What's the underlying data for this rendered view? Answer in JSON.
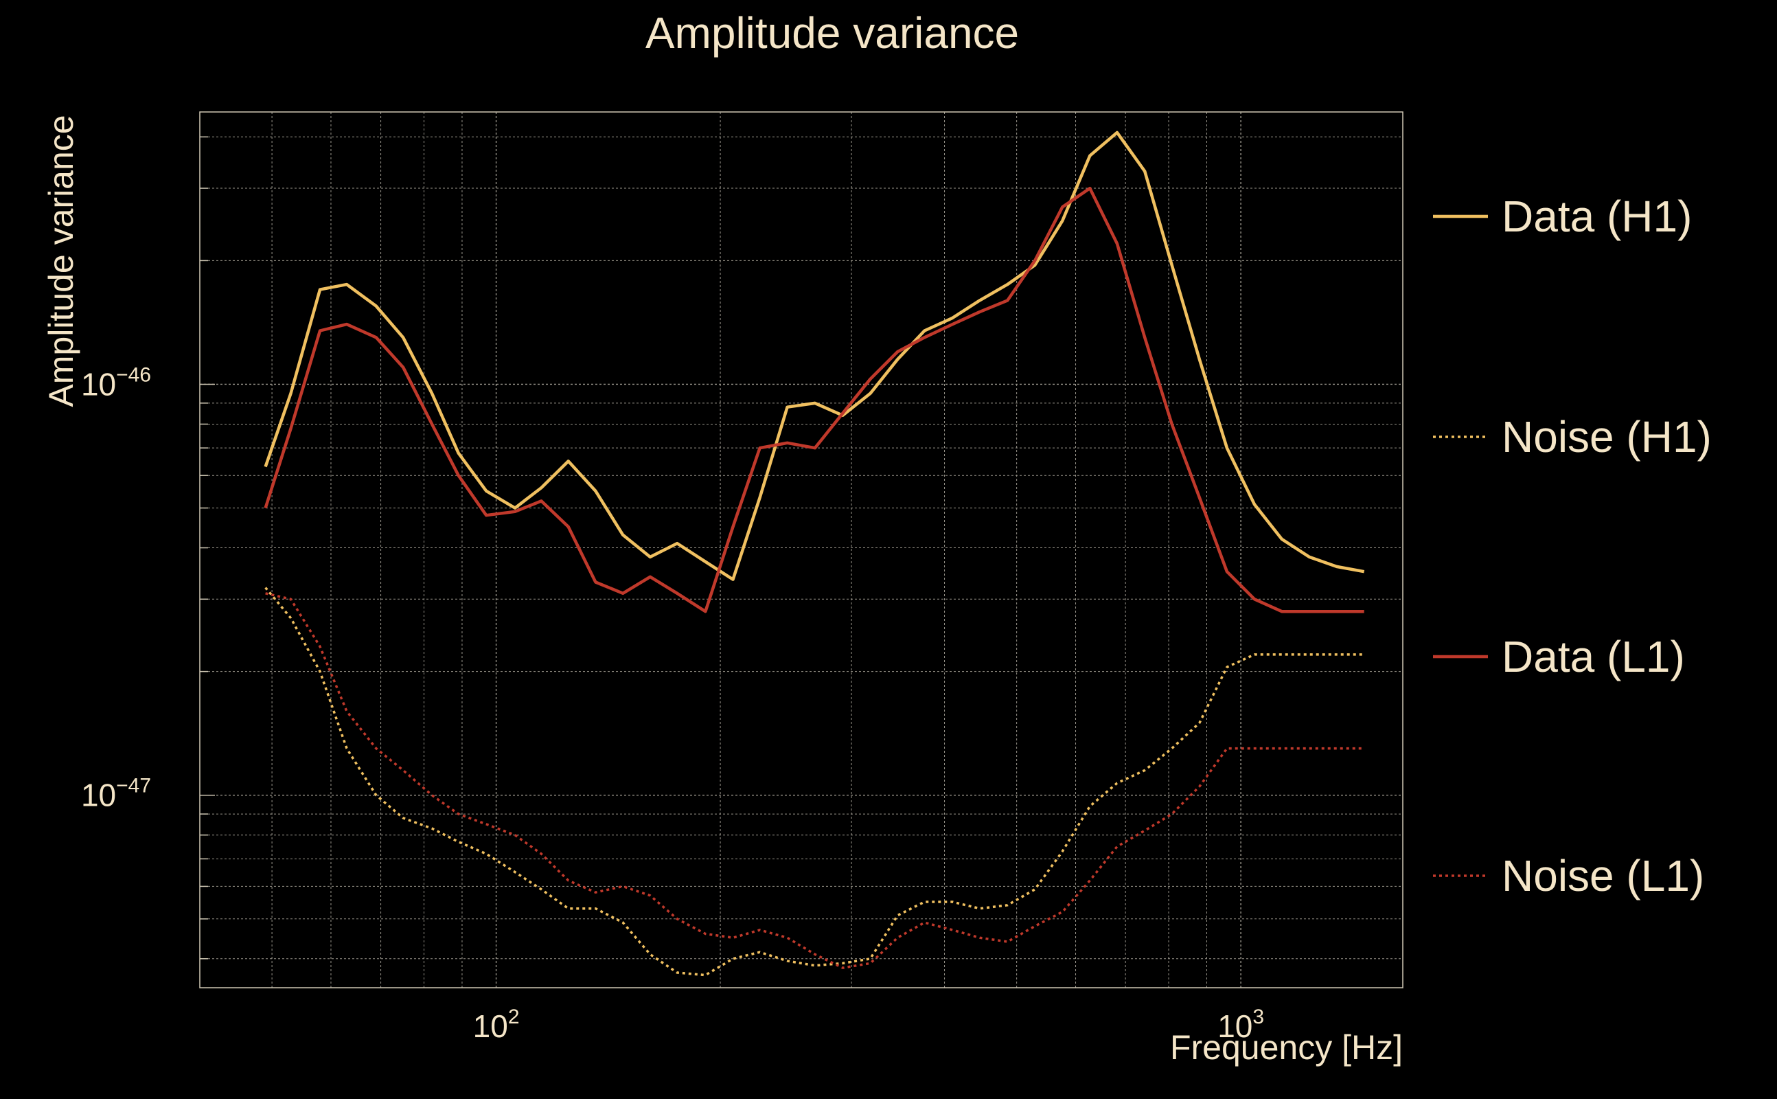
{
  "chart_data": {
    "type": "line",
    "title": "Amplitude variance",
    "xlabel": "Frequency [Hz]",
    "ylabel": "Amplitude variance",
    "xscale": "log",
    "yscale": "log",
    "xlim": [
      40,
      1650
    ],
    "ylim": [
      3.4e-48,
      4.6e-46
    ],
    "grid": true,
    "legend_position": "right",
    "x_ticks": [
      {
        "value": 100,
        "base": "10",
        "exp": "2"
      },
      {
        "value": 1000,
        "base": "10",
        "exp": "3"
      }
    ],
    "y_ticks": [
      {
        "value": 1e-46,
        "base": "10",
        "exp": "−46"
      },
      {
        "value": 1e-47,
        "base": "10",
        "exp": "−47"
      }
    ],
    "x": [
      49,
      53,
      58,
      63,
      69,
      75,
      82,
      89,
      97,
      106,
      115,
      125,
      136,
      148,
      161,
      175,
      191,
      208,
      226,
      246,
      268,
      292,
      318,
      346,
      376,
      410,
      446,
      486,
      529,
      576,
      627,
      682,
      743,
      808,
      880,
      958,
      1043,
      1135,
      1236,
      1345,
      1464
    ],
    "series": [
      {
        "name": "Data (H1)",
        "color": "#f0c060",
        "dash": "solid",
        "values": [
          6.3e-47,
          9.5e-47,
          1.7e-46,
          1.75e-46,
          1.55e-46,
          1.3e-46,
          9.5e-47,
          6.8e-47,
          5.5e-47,
          5e-47,
          5.6e-47,
          6.5e-47,
          5.5e-47,
          4.3e-47,
          3.8e-47,
          4.1e-47,
          3.7e-47,
          3.35e-47,
          5.3e-47,
          8.8e-47,
          9e-47,
          8.4e-47,
          9.5e-47,
          1.15e-46,
          1.35e-46,
          1.45e-46,
          1.6e-46,
          1.75e-46,
          1.95e-46,
          2.5e-46,
          3.6e-46,
          4.1e-46,
          3.3e-46,
          1.95e-46,
          1.15e-46,
          7e-47,
          5.1e-47,
          4.2e-47,
          3.8e-47,
          3.6e-47,
          3.5e-47
        ]
      },
      {
        "name": "Noise (H1)",
        "color": "#f0c060",
        "dash": "dotted",
        "values": [
          3.2e-47,
          2.7e-47,
          2e-47,
          1.3e-47,
          1e-47,
          8.8e-48,
          8.3e-48,
          7.7e-48,
          7.2e-48,
          6.5e-48,
          5.9e-48,
          5.3e-48,
          5.3e-48,
          4.9e-48,
          4.1e-48,
          3.7e-48,
          3.65e-48,
          4e-48,
          4.15e-48,
          3.95e-48,
          3.85e-48,
          3.9e-48,
          4e-48,
          5.1e-48,
          5.5e-48,
          5.5e-48,
          5.3e-48,
          5.4e-48,
          5.9e-48,
          7.3e-48,
          9.4e-48,
          1.07e-47,
          1.15e-47,
          1.3e-47,
          1.5e-47,
          2.05e-47,
          2.2e-47,
          2.2e-47,
          2.2e-47,
          2.2e-47,
          2.2e-47
        ]
      },
      {
        "name": "Data (L1)",
        "color": "#c0392b",
        "dash": "solid",
        "values": [
          5e-47,
          7.8e-47,
          1.35e-46,
          1.4e-46,
          1.3e-46,
          1.1e-46,
          8e-47,
          6e-47,
          4.8e-47,
          4.9e-47,
          5.2e-47,
          4.5e-47,
          3.3e-47,
          3.1e-47,
          3.4e-47,
          3.1e-47,
          2.8e-47,
          4.5e-47,
          7e-47,
          7.2e-47,
          7e-47,
          8.5e-47,
          1.03e-46,
          1.2e-46,
          1.3e-46,
          1.4e-46,
          1.5e-46,
          1.6e-46,
          2e-46,
          2.7e-46,
          3e-46,
          2.2e-46,
          1.3e-46,
          8e-47,
          5.3e-47,
          3.5e-47,
          3e-47,
          2.8e-47,
          2.8e-47,
          2.8e-47,
          2.8e-47
        ]
      },
      {
        "name": "Noise (L1)",
        "color": "#c0392b",
        "dash": "dotted",
        "values": [
          3.1e-47,
          3e-47,
          2.3e-47,
          1.6e-47,
          1.3e-47,
          1.15e-47,
          1e-47,
          9e-48,
          8.5e-48,
          8e-48,
          7.2e-48,
          6.2e-48,
          5.8e-48,
          6e-48,
          5.7e-48,
          5e-48,
          4.6e-48,
          4.5e-48,
          4.7e-48,
          4.5e-48,
          4.1e-48,
          3.8e-48,
          3.9e-48,
          4.5e-48,
          4.9e-48,
          4.7e-48,
          4.5e-48,
          4.4e-48,
          4.8e-48,
          5.2e-48,
          6.2e-48,
          7.5e-48,
          8.2e-48,
          9e-48,
          1.05e-47,
          1.3e-47,
          1.3e-47,
          1.3e-47,
          1.3e-47,
          1.3e-47,
          1.3e-47
        ]
      }
    ]
  }
}
